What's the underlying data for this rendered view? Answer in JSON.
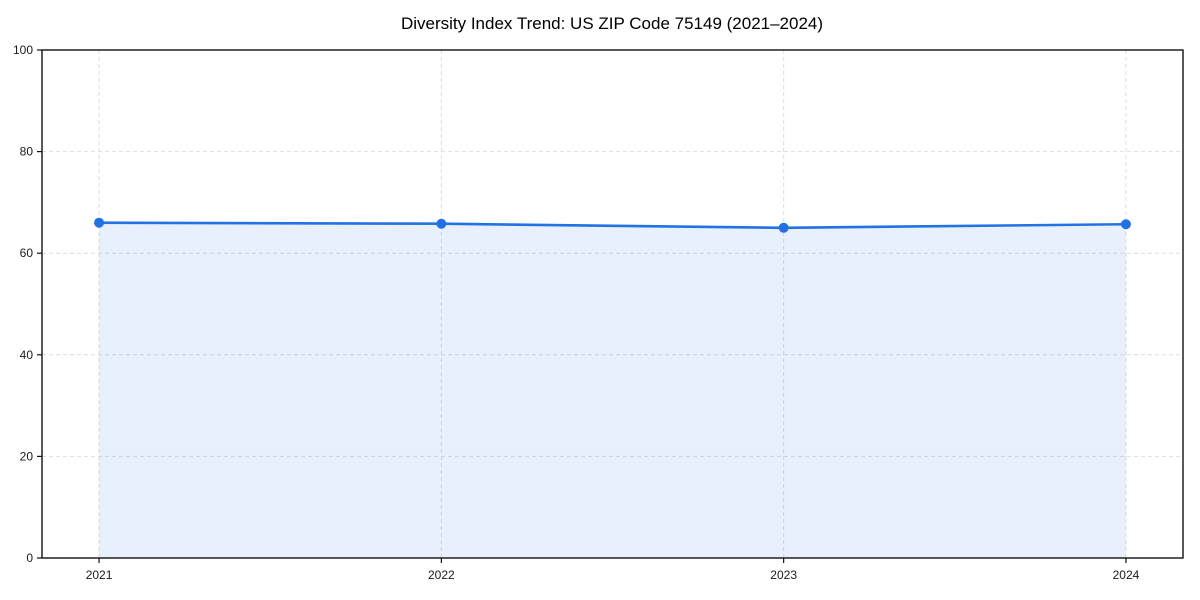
{
  "chart_data": {
    "type": "area",
    "title": "Diversity Index Trend: US ZIP Code 75149 (2021–2024)",
    "x": [
      2021,
      2022,
      2023,
      2024
    ],
    "series": [
      {
        "name": "Diversity Index",
        "values": [
          66.0,
          65.8,
          65.0,
          65.7
        ]
      }
    ],
    "xlabel": "",
    "ylabel": "",
    "ylim": [
      0,
      100
    ],
    "yticks": [
      0,
      20,
      40,
      60,
      80,
      100
    ],
    "xticks": [
      2021,
      2022,
      2023,
      2024
    ],
    "grid": true,
    "grid_style": "dashed",
    "legend": false,
    "colors": {
      "line": "#2272e4",
      "marker": "#2272e4",
      "fill": "#e9f1fc",
      "grid": "#dddddd",
      "frame": "#111111",
      "text": "#1a1a1a",
      "background": "#ffffff"
    }
  }
}
